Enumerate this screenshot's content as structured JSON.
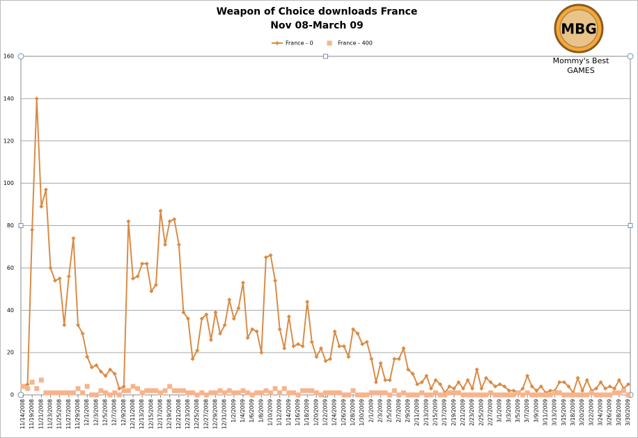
{
  "chart_data": {
    "type": "line",
    "title": "Weapon of Choice downloads France",
    "subtitle": "Nov 08-March 09",
    "categories": [
      "11/14/2008",
      null,
      "11/19/2008",
      null,
      "11/21/2008",
      null,
      "11/23/2008",
      null,
      "11/25/2008",
      null,
      "11/27/2008",
      null,
      "11/29/2008",
      null,
      "12/1/2008",
      null,
      "12/3/2008",
      null,
      "12/5/2008",
      null,
      "12/7/2008",
      null,
      "12/9/2008",
      null,
      "12/11/2008",
      null,
      "12/13/2008",
      null,
      "12/15/2008",
      null,
      "12/17/2008",
      null,
      "12/19/2008",
      null,
      "12/21/2008",
      null,
      "12/23/2008",
      null,
      "12/25/2008",
      null,
      "12/27/2008",
      null,
      "12/29/2008",
      null,
      "12/31/2008",
      null,
      "1/2/2009",
      null,
      "1/4/2009",
      null,
      "1/6/2009",
      null,
      "1/8/2009",
      null,
      "1/10/2009",
      null,
      "1/12/2009",
      null,
      "1/14/2009",
      null,
      "1/16/2009",
      null,
      "1/18/2009",
      null,
      "1/20/2009",
      null,
      "1/22/2009",
      null,
      "1/24/2009",
      null,
      "1/26/2009",
      null,
      "1/28/2009",
      null,
      "1/30/2009",
      null,
      "2/1/2009",
      null,
      "2/3/2009",
      null,
      "2/5/2009",
      null,
      "2/7/2009",
      null,
      "2/9/2009",
      null,
      "2/11/2009",
      null,
      "2/13/2009",
      null,
      "2/15/2009",
      null,
      "2/17/2009",
      null,
      "2/19/2009",
      null,
      "2/21/2009",
      null,
      "2/23/2009",
      null,
      "2/25/2009",
      null,
      "2/27/2009",
      null,
      "3/1/2009",
      null,
      "3/3/2009",
      null,
      "3/5/2009",
      null,
      "3/7/2009",
      null,
      "3/9/2009",
      null,
      "3/11/2009",
      null,
      "3/13/2009",
      null,
      "3/15/2009",
      null,
      "3/18/2009",
      null,
      "3/20/2009",
      null,
      "3/22/2009",
      null,
      "3/24/2009",
      null,
      "3/26/2009",
      null,
      "3/28/2009",
      null,
      "3/30/2009"
    ],
    "series": [
      {
        "name": "France - 0",
        "color": "#d98b45",
        "marker": "diamond",
        "values": [
          4,
          5,
          78,
          140,
          89,
          97,
          60,
          54,
          55,
          33,
          56,
          74,
          33,
          29,
          18,
          13,
          14,
          11,
          9,
          12,
          10,
          3,
          4,
          82,
          55,
          56,
          62,
          62,
          49,
          52,
          87,
          71,
          82,
          83,
          71,
          39,
          36,
          17,
          21,
          36,
          38,
          26,
          39,
          29,
          33,
          45,
          36,
          41,
          53,
          27,
          31,
          30,
          20,
          65,
          66,
          54,
          31,
          22,
          37,
          23,
          24,
          23,
          44,
          25,
          18,
          22,
          16,
          17,
          30,
          23,
          23,
          18,
          31,
          29,
          24,
          25,
          17,
          6,
          15,
          7,
          7,
          17,
          17,
          22,
          12,
          10,
          5,
          6,
          9,
          3,
          7,
          5,
          1,
          4,
          3,
          6,
          3,
          7,
          3,
          12,
          3,
          8,
          6,
          4,
          5,
          4,
          2,
          2,
          1,
          3,
          9,
          4,
          2,
          4,
          1,
          2,
          2,
          6,
          6,
          4,
          1,
          8,
          2,
          7,
          2,
          3,
          6,
          3,
          4,
          3,
          7,
          3,
          5
        ]
      },
      {
        "name": "France - 400",
        "color": "#f6b48c",
        "marker": "square",
        "values": [
          4,
          3,
          6,
          3,
          7,
          1,
          1,
          1,
          1,
          1,
          1,
          1,
          3,
          1,
          4,
          0,
          0,
          2,
          1,
          0,
          1,
          0,
          2,
          2,
          4,
          3,
          1,
          2,
          2,
          2,
          1,
          2,
          4,
          2,
          2,
          2,
          1,
          1,
          0,
          1,
          0,
          1,
          1,
          2,
          1,
          2,
          1,
          1,
          2,
          1,
          0,
          1,
          1,
          2,
          1,
          3,
          1,
          3,
          1,
          1,
          0,
          2,
          2,
          2,
          1,
          0,
          1,
          1,
          1,
          1,
          0,
          0,
          2,
          0,
          0,
          0,
          1,
          1,
          1,
          1,
          0,
          2,
          0,
          1,
          0,
          0,
          0,
          1,
          0,
          0,
          1,
          0,
          0,
          1,
          1,
          1,
          0,
          0,
          0,
          0,
          0,
          0,
          1,
          0,
          0,
          0,
          0,
          0,
          1,
          0,
          1,
          0,
          0,
          0,
          0,
          0,
          1,
          1,
          0,
          0,
          0,
          0,
          0,
          0,
          1,
          0,
          0,
          0,
          0,
          1,
          1,
          2,
          0
        ]
      }
    ],
    "ylim": [
      0,
      160
    ],
    "yticks": [
      0,
      20,
      40,
      60,
      80,
      100,
      120,
      140,
      160
    ],
    "grid": true,
    "legend": "top"
  },
  "logo": {
    "mark": "MBG",
    "line1": "Mommy's Best",
    "line2": "GAMES"
  }
}
